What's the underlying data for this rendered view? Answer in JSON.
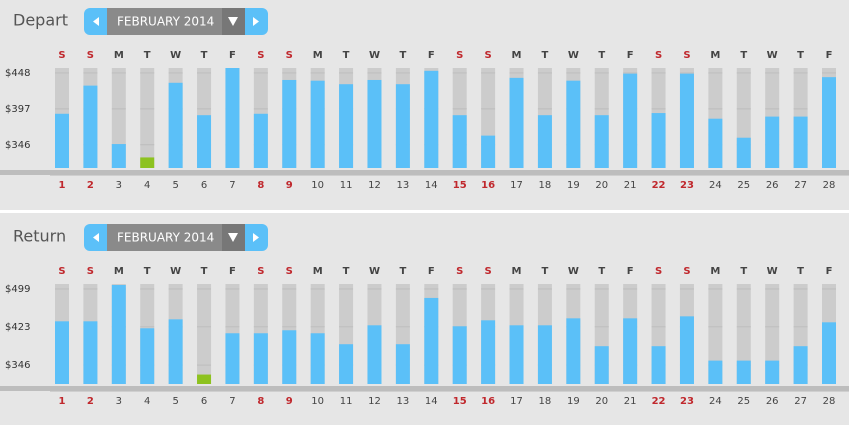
{
  "chart_data": [
    {
      "type": "bar",
      "title": "Depart",
      "month": "FEBRUARY 2014",
      "weekdays": [
        "S",
        "S",
        "M",
        "T",
        "W",
        "T",
        "F",
        "S",
        "S",
        "M",
        "T",
        "W",
        "T",
        "F",
        "S",
        "S",
        "M",
        "T",
        "W",
        "T",
        "F",
        "S",
        "S",
        "M",
        "T",
        "W",
        "T",
        "F"
      ],
      "categories": [
        "1",
        "2",
        "3",
        "4",
        "5",
        "6",
        "7",
        "8",
        "9",
        "10",
        "11",
        "12",
        "13",
        "14",
        "15",
        "16",
        "17",
        "18",
        "19",
        "20",
        "21",
        "22",
        "23",
        "24",
        "25",
        "26",
        "27",
        "28"
      ],
      "values": [
        390,
        430,
        347,
        328,
        434,
        388,
        455,
        390,
        438,
        437,
        432,
        438,
        432,
        451,
        388,
        359,
        441,
        388,
        437,
        388,
        447,
        391,
        447,
        383,
        356,
        386,
        386,
        442
      ],
      "colors": [
        "#5bc0f8",
        "#5bc0f8",
        "#5bc0f8",
        "#8dc21f",
        "#5bc0f8",
        "#5bc0f8",
        "#5bc0f8",
        "#5bc0f8",
        "#5bc0f8",
        "#5bc0f8",
        "#5bc0f8",
        "#5bc0f8",
        "#5bc0f8",
        "#5bc0f8",
        "#5bc0f8",
        "#5bc0f8",
        "#5bc0f8",
        "#5bc0f8",
        "#5bc0f8",
        "#5bc0f8",
        "#5bc0f8",
        "#5bc0f8",
        "#5bc0f8",
        "#5bc0f8",
        "#5bc0f8",
        "#5bc0f8",
        "#5bc0f8",
        "#5bc0f8"
      ],
      "day_colors": [
        "#c0282d",
        "#c0282d",
        "#444",
        "#444",
        "#444",
        "#444",
        "#444",
        "#c0282d",
        "#c0282d",
        "#444",
        "#444",
        "#444",
        "#444",
        "#444",
        "#c0282d",
        "#c0282d",
        "#444",
        "#444",
        "#444",
        "#444",
        "#444",
        "#c0282d",
        "#c0282d",
        "#444",
        "#444",
        "#444",
        "#444",
        "#444"
      ],
      "ylim": [
        313,
        455
      ],
      "yticks": [
        {
          "value": 448,
          "label": "$448"
        },
        {
          "value": 397,
          "label": "$397"
        },
        {
          "value": 346,
          "label": "$346"
        }
      ],
      "grid": true
    },
    {
      "type": "bar",
      "title": "Return",
      "month": "FEBRUARY 2014",
      "weekdays": [
        "S",
        "S",
        "M",
        "T",
        "W",
        "T",
        "F",
        "S",
        "S",
        "M",
        "T",
        "W",
        "T",
        "F",
        "S",
        "S",
        "M",
        "T",
        "W",
        "T",
        "F",
        "S",
        "S",
        "M",
        "T",
        "W",
        "T",
        "F"
      ],
      "categories": [
        "1",
        "2",
        "3",
        "4",
        "5",
        "6",
        "7",
        "8",
        "9",
        "10",
        "11",
        "12",
        "13",
        "14",
        "15",
        "16",
        "17",
        "18",
        "19",
        "20",
        "21",
        "22",
        "23",
        "24",
        "25",
        "26",
        "27",
        "28"
      ],
      "values": [
        434,
        434,
        507,
        420,
        438,
        327,
        410,
        410,
        416,
        410,
        388,
        426,
        388,
        481,
        424,
        436,
        426,
        426,
        440,
        384,
        440,
        384,
        444,
        355,
        355,
        355,
        384,
        432
      ],
      "colors": [
        "#5bc0f8",
        "#5bc0f8",
        "#5bc0f8",
        "#5bc0f8",
        "#5bc0f8",
        "#8dc21f",
        "#5bc0f8",
        "#5bc0f8",
        "#5bc0f8",
        "#5bc0f8",
        "#5bc0f8",
        "#5bc0f8",
        "#5bc0f8",
        "#5bc0f8",
        "#5bc0f8",
        "#5bc0f8",
        "#5bc0f8",
        "#5bc0f8",
        "#5bc0f8",
        "#5bc0f8",
        "#5bc0f8",
        "#5bc0f8",
        "#5bc0f8",
        "#5bc0f8",
        "#5bc0f8",
        "#5bc0f8",
        "#5bc0f8",
        "#5bc0f8"
      ],
      "day_colors": [
        "#c0282d",
        "#c0282d",
        "#444",
        "#444",
        "#444",
        "#444",
        "#444",
        "#c0282d",
        "#c0282d",
        "#444",
        "#444",
        "#444",
        "#444",
        "#444",
        "#c0282d",
        "#c0282d",
        "#444",
        "#444",
        "#444",
        "#444",
        "#444",
        "#c0282d",
        "#c0282d",
        "#444",
        "#444",
        "#444",
        "#444",
        "#444"
      ],
      "ylim": [
        308,
        509
      ],
      "yticks": [
        {
          "value": 499,
          "label": "$499"
        },
        {
          "value": 423,
          "label": "$423"
        },
        {
          "value": 346,
          "label": "$346"
        }
      ],
      "grid": true
    }
  ]
}
